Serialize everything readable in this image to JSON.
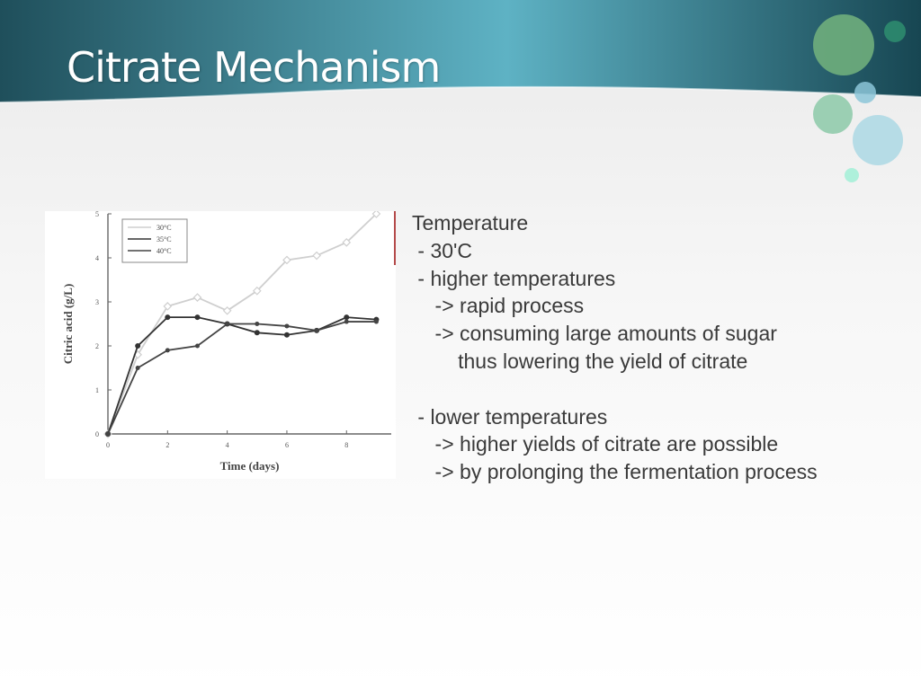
{
  "slide": {
    "title": "Citrate Mechanism"
  },
  "content": {
    "lines": [
      "Temperature",
      " - 30'C",
      " - higher temperatures",
      "    -> rapid process",
      "    -> consuming large amounts of sugar",
      "        thus lowering the yield of citrate",
      "",
      " - lower temperatures",
      "    -> higher yields of citrate are possible",
      "    -> by prolonging the fermentation process"
    ]
  },
  "chart_data": {
    "type": "line",
    "xlabel": "Time (days)",
    "ylabel": "Citric acid (g/L)",
    "x_ticks": [
      "0",
      "2",
      "4",
      "6",
      "8"
    ],
    "y_ticks": [
      "0",
      "1",
      "2",
      "3",
      "4",
      "5"
    ],
    "xlim": [
      0,
      9.5
    ],
    "ylim": [
      0,
      5
    ],
    "legend": [
      "30°C",
      "35°C",
      "40°C"
    ],
    "legend_position": "top-left",
    "series": [
      {
        "name": "30°C",
        "x": [
          0,
          1,
          2,
          3,
          4,
          5,
          6,
          7,
          8,
          9
        ],
        "y": [
          0,
          1.8,
          2.9,
          3.1,
          2.8,
          3.25,
          3.95,
          4.05,
          4.35,
          5.0
        ]
      },
      {
        "name": "35°C",
        "x": [
          0,
          1,
          2,
          3,
          4,
          5,
          6,
          7,
          8,
          9
        ],
        "y": [
          0,
          2.0,
          2.65,
          2.65,
          2.5,
          2.3,
          2.25,
          2.35,
          2.65,
          2.6
        ]
      },
      {
        "name": "40°C",
        "x": [
          0,
          1,
          2,
          3,
          4,
          5,
          6,
          7,
          8,
          9
        ],
        "y": [
          0,
          1.5,
          1.9,
          2.0,
          2.5,
          2.5,
          2.45,
          2.35,
          2.55,
          2.55
        ]
      }
    ]
  }
}
